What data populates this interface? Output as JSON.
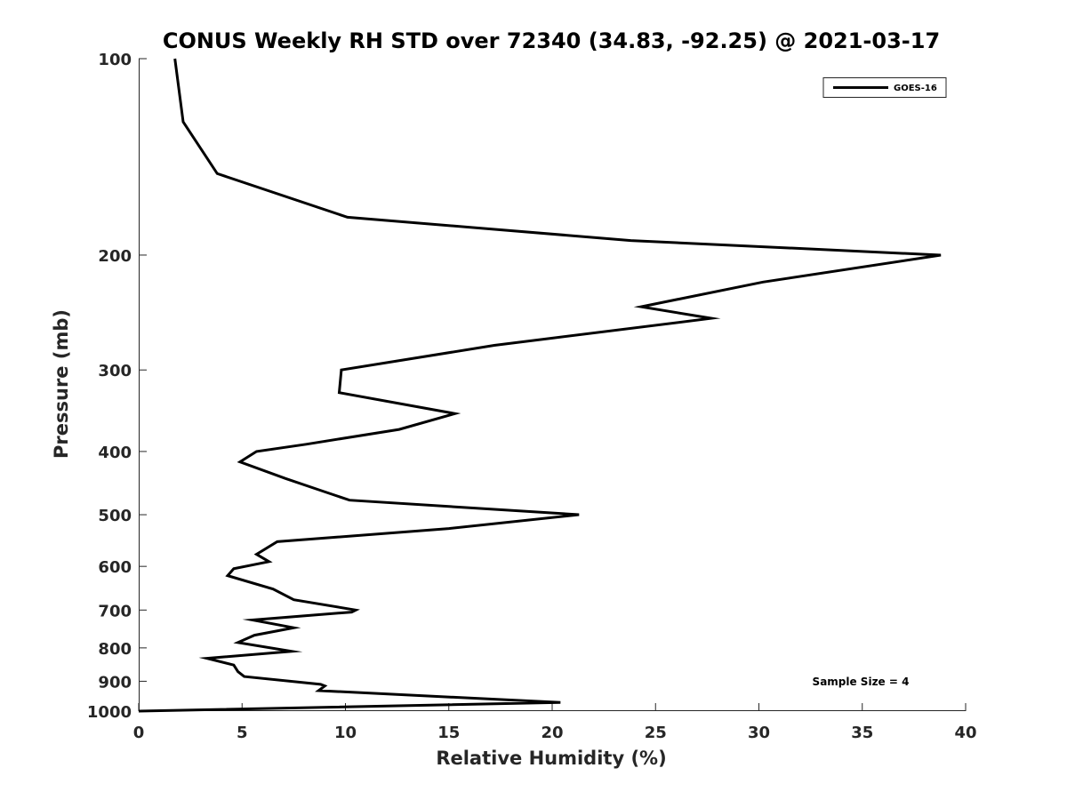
{
  "chart_data": {
    "type": "line",
    "title": "CONUS Weekly RH STD over 72340 (34.83, -92.25) @ 2021-03-17",
    "xlabel": "Relative Humidity (%)",
    "ylabel": "Pressure (mb)",
    "xlim": [
      0,
      40
    ],
    "ylim": [
      100,
      1000
    ],
    "y_scale": "log",
    "y_reversed": true,
    "grid": false,
    "legend_position": "top-right",
    "x_ticks": [
      0,
      5,
      10,
      15,
      20,
      25,
      30,
      35,
      40
    ],
    "y_ticks": [
      100,
      200,
      300,
      400,
      500,
      600,
      700,
      800,
      900,
      1000
    ],
    "annotation": "Sample Size = 4",
    "series": [
      {
        "name": "GOES-16",
        "color": "#000000",
        "points": [
          [
            1.75,
            100
          ],
          [
            2.15,
            125
          ],
          [
            3.8,
            150
          ],
          [
            10.1,
            175
          ],
          [
            23.8,
            190
          ],
          [
            38.8,
            200
          ],
          [
            30.2,
            220
          ],
          [
            24.3,
            240
          ],
          [
            27.7,
            250
          ],
          [
            17.2,
            275
          ],
          [
            9.8,
            300
          ],
          [
            9.7,
            325
          ],
          [
            15.3,
            350
          ],
          [
            12.6,
            370
          ],
          [
            8.1,
            390
          ],
          [
            5.7,
            400
          ],
          [
            4.9,
            415
          ],
          [
            7.1,
            440
          ],
          [
            8.9,
            460
          ],
          [
            10.2,
            475
          ],
          [
            21.3,
            500
          ],
          [
            15.0,
            525
          ],
          [
            6.7,
            550
          ],
          [
            5.7,
            575
          ],
          [
            6.3,
            590
          ],
          [
            4.6,
            605
          ],
          [
            4.3,
            620
          ],
          [
            6.5,
            650
          ],
          [
            7.5,
            675
          ],
          [
            10.5,
            700
          ],
          [
            10.3,
            705
          ],
          [
            5.5,
            725
          ],
          [
            7.5,
            745
          ],
          [
            5.6,
            765
          ],
          [
            4.8,
            785
          ],
          [
            7.4,
            810
          ],
          [
            3.3,
            830
          ],
          [
            4.6,
            850
          ],
          [
            4.8,
            870
          ],
          [
            5.1,
            885
          ],
          [
            8.8,
            910
          ],
          [
            9.0,
            915
          ],
          [
            8.7,
            930
          ],
          [
            20.4,
            970
          ],
          [
            0.0,
            1000
          ]
        ]
      }
    ]
  }
}
